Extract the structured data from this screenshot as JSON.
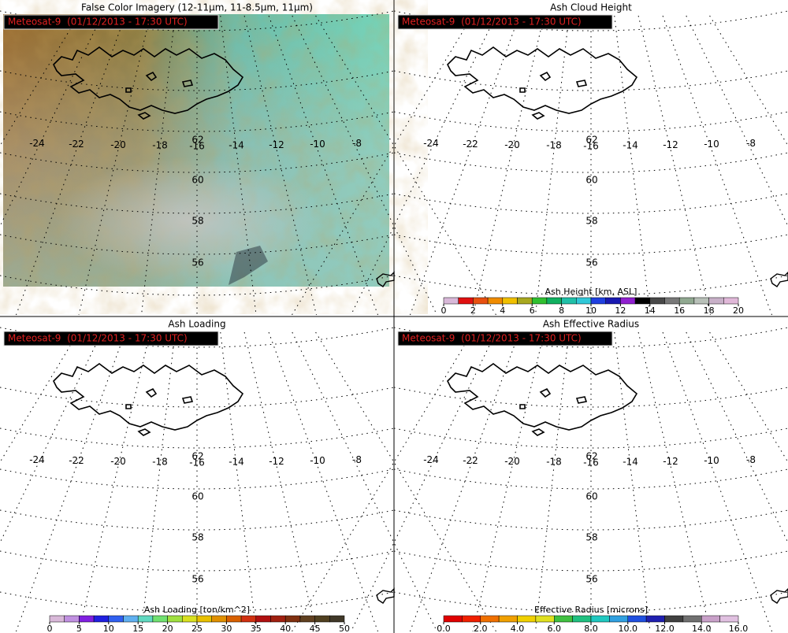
{
  "map_labels": {
    "satellite_label": "Meteosat-9  (01/12/2013 - 17:30 UTC)",
    "lat_labels": [
      "62",
      "60",
      "58",
      "56"
    ],
    "lon_labels": [
      "-24",
      "-22",
      "-20",
      "-18",
      "-16",
      "-14",
      "-12",
      "-10",
      "-8"
    ]
  },
  "panels": [
    {
      "title": "False Color Imagery (12-11μm, 11-8.5μm, 11μm)",
      "imagery": true
    },
    {
      "title": "Ash Cloud Height",
      "imagery": false,
      "colorbar": {
        "title": "Ash Height [km, ASL]",
        "range": [
          0,
          20
        ],
        "ticks": [
          0,
          2,
          4,
          6,
          8,
          10,
          12,
          14,
          16,
          18,
          20
        ],
        "colors": [
          "#d8b8d8",
          "#e01010",
          "#e85010",
          "#f08c00",
          "#f0c000",
          "#a8a820",
          "#30c030",
          "#10b060",
          "#20c0a8",
          "#30c8d8",
          "#2040e0",
          "#1818b0",
          "#9020d0",
          "#000000",
          "#484848",
          "#787878",
          "#90a890",
          "#b8c0b8",
          "#c8b0c8",
          "#e0b8d8"
        ]
      }
    },
    {
      "title": "Ash Loading",
      "imagery": false,
      "colorbar": {
        "title": "Ash Loading [ton/km^2]",
        "range": [
          0,
          50
        ],
        "ticks": [
          0,
          5,
          10,
          15,
          20,
          25,
          30,
          35,
          40,
          45,
          50
        ],
        "colors": [
          "#d8b8d8",
          "#c090e0",
          "#8020e0",
          "#2020e0",
          "#3060f0",
          "#60b0f0",
          "#60d8c0",
          "#70e070",
          "#a0e040",
          "#d8e020",
          "#e8c000",
          "#e09000",
          "#d86000",
          "#d03010",
          "#b01010",
          "#a02010",
          "#803010",
          "#604020",
          "#504020",
          "#403828"
        ]
      }
    },
    {
      "title": "Ash Effective Radius",
      "imagery": false,
      "colorbar": {
        "title": "Effective Radius [microns]",
        "range": [
          0,
          16
        ],
        "ticks": [
          {
            "value": 0,
            "label": "0.0"
          },
          {
            "value": 2,
            "label": "2.0"
          },
          {
            "value": 4,
            "label": "4.0"
          },
          {
            "value": 6,
            "label": "6.0"
          },
          {
            "value": 8,
            "label": "8.0"
          },
          {
            "value": 10,
            "label": "10.0"
          },
          {
            "value": 12,
            "label": "12.0"
          },
          {
            "value": 14,
            "label": "14.0"
          },
          {
            "value": 16,
            "label": "16.0"
          }
        ],
        "colors": [
          "#e00000",
          "#f02000",
          "#f07000",
          "#f0a000",
          "#f0d000",
          "#e0e020",
          "#40c040",
          "#20c080",
          "#20c8c0",
          "#30a0e0",
          "#2050e0",
          "#2020b0",
          "#404040",
          "#707070",
          "#c8a0c8",
          "#e0c0e0"
        ]
      }
    }
  ]
}
